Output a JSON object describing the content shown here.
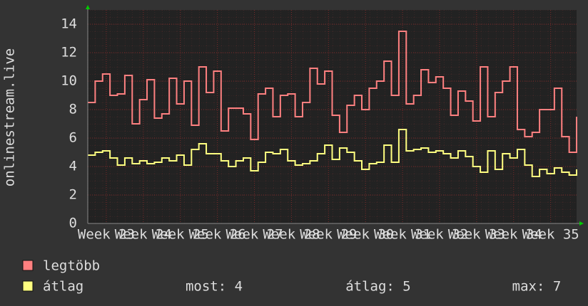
{
  "chart_data": {
    "type": "line",
    "step": true,
    "y_label": "onlinestream.live",
    "x": [
      22.5,
      22.7,
      22.9,
      23.1,
      23.3,
      23.5,
      23.7,
      23.9,
      24.1,
      24.3,
      24.5,
      24.7,
      24.9,
      25.1,
      25.3,
      25.5,
      25.7,
      25.9,
      26.1,
      26.3,
      26.5,
      26.7,
      26.9,
      27.1,
      27.3,
      27.5,
      27.7,
      27.9,
      28.1,
      28.3,
      28.5,
      28.7,
      28.9,
      29.1,
      29.3,
      29.5,
      29.7,
      29.9,
      30.1,
      30.3,
      30.5,
      30.7,
      30.9,
      31.1,
      31.3,
      31.5,
      31.7,
      31.9,
      32.1,
      32.3,
      32.5,
      32.7,
      32.9,
      33.1,
      33.3,
      33.5,
      33.7,
      33.9,
      34.1,
      34.3,
      34.5,
      34.7,
      34.9,
      35.1,
      35.3,
      35.5,
      35.7
    ],
    "series": [
      {
        "name": "legtöbb",
        "color": "#ff8080",
        "values": [
          8.5,
          10,
          10.5,
          9,
          9.1,
          10.4,
          7,
          8.7,
          10.1,
          7.4,
          7.7,
          10.2,
          8.4,
          10,
          6.9,
          11,
          9.2,
          10.7,
          6.5,
          8.1,
          8.1,
          7.7,
          5.9,
          9.1,
          9.5,
          7.5,
          9,
          9.1,
          7.5,
          8.5,
          10.9,
          9.8,
          10.7,
          7.6,
          6.4,
          8.3,
          9,
          8,
          9.5,
          10,
          11.4,
          9,
          13.5,
          8.4,
          9,
          10.8,
          9.9,
          10.3,
          9.5,
          7.6,
          9.3,
          8.6,
          7.2,
          11,
          7.5,
          9.2,
          10,
          11,
          6.6,
          6.1,
          6.4,
          8,
          8,
          9.5,
          6.1,
          5,
          7.5
        ]
      },
      {
        "name": "átlag",
        "color": "#ffff80",
        "values": [
          4.8,
          5,
          5.1,
          4.6,
          4.1,
          4.6,
          4.2,
          4.4,
          4.2,
          4.3,
          4.6,
          4.4,
          4.8,
          4.1,
          5.2,
          5.6,
          4.9,
          4.9,
          4.4,
          4,
          4.4,
          4.6,
          3.7,
          4.3,
          5,
          4.9,
          5.2,
          4.4,
          4.1,
          4.2,
          4.4,
          4.9,
          5.5,
          4.5,
          5.3,
          5,
          4.4,
          3.8,
          4.2,
          4.3,
          5.5,
          4.3,
          6.6,
          5.1,
          5.2,
          5.3,
          5,
          5.1,
          4.9,
          4.6,
          5.1,
          4.7,
          4,
          3.6,
          5.1,
          3.8,
          4.9,
          4.6,
          5.2,
          4.1,
          3.3,
          3.8,
          3.5,
          3.9,
          3.6,
          3.4,
          3.8
        ]
      }
    ],
    "xlim": [
      22.5,
      35.7
    ],
    "xticks": [
      {
        "value": 23,
        "label": "Week 23"
      },
      {
        "value": 24,
        "label": "Week 24"
      },
      {
        "value": 25,
        "label": "Week 25"
      },
      {
        "value": 26,
        "label": "Week 26"
      },
      {
        "value": 27,
        "label": "Week 27"
      },
      {
        "value": 28,
        "label": "Week 28"
      },
      {
        "value": 29,
        "label": "Week 29"
      },
      {
        "value": 30,
        "label": "Week 30"
      },
      {
        "value": 31,
        "label": "Week 31"
      },
      {
        "value": 32,
        "label": "Week 32"
      },
      {
        "value": 33,
        "label": "Week 33"
      },
      {
        "value": 34,
        "label": "Week 34"
      },
      {
        "value": 35,
        "label": "Week 35"
      }
    ],
    "ylim": [
      0,
      15
    ],
    "yticks": [
      0,
      2,
      4,
      6,
      8,
      10,
      12,
      14
    ],
    "grid": true,
    "stats": [
      "most: 4",
      "átlag: 5",
      "max: 7"
    ]
  }
}
